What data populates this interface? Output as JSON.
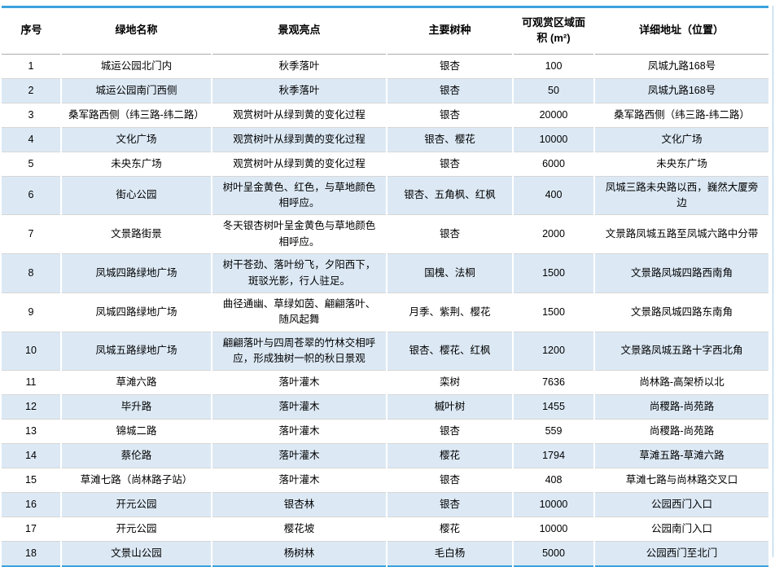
{
  "table": {
    "columns": [
      {
        "key": "index",
        "label": "序号"
      },
      {
        "key": "name",
        "label": "绿地名称"
      },
      {
        "key": "highlight",
        "label": "景观亮点"
      },
      {
        "key": "species",
        "label": "主要树种"
      },
      {
        "key": "area",
        "label": "可观赏区域面积 (m²)"
      },
      {
        "key": "address",
        "label": "详细地址（位置）"
      }
    ],
    "rows": [
      [
        "1",
        "城运公园北门内",
        "秋季落叶",
        "银杏",
        "100",
        "凤城九路168号"
      ],
      [
        "2",
        "城运公园南门西侧",
        "秋季落叶",
        "银杏",
        "50",
        "凤城九路168号"
      ],
      [
        "3",
        "桑军路西侧（纬三路-纬二路）",
        "观赏树叶从绿到黄的变化过程",
        "银杏",
        "20000",
        "桑军路西侧（纬三路-纬二路）"
      ],
      [
        "4",
        "文化广场",
        "观赏树叶从绿到黄的变化过程",
        "银杏、樱花",
        "10000",
        "文化广场"
      ],
      [
        "5",
        "未央东广场",
        "观赏树叶从绿到黄的变化过程",
        "银杏",
        "6000",
        "未央东广场"
      ],
      [
        "6",
        "街心公园",
        "树叶呈金黄色、红色，与草地颜色相呼应。",
        "银杏、五角枫、红枫",
        "400",
        "凤城三路未央路以西，巍然大厦旁边"
      ],
      [
        "7",
        "文景路街景",
        "冬天银杏树叶呈金黄色与草地颜色相呼应。",
        "银杏",
        "2000",
        "文景路凤城五路至凤城六路中分带"
      ],
      [
        "8",
        "凤城四路绿地广场",
        "树干苍劲、落叶纷飞，夕阳西下，斑驳光影，行人驻足。",
        "国槐、法桐",
        "1500",
        "文景路凤城四路西南角"
      ],
      [
        "9",
        "凤城四路绿地广场",
        "曲径通幽、草绿如茵、翩翩落叶、随风起舞",
        "月季、紫荆、樱花",
        "1500",
        "文景路凤城四路东南角"
      ],
      [
        "10",
        "凤城五路绿地广场",
        "翩翩落叶与四周苍翠的竹林交相呼应，形成独树一帜的秋日景观",
        "银杏、樱花、红枫",
        "1200",
        "文景路凤城五路十字西北角"
      ],
      [
        "11",
        "草滩六路",
        "落叶灌木",
        "栾树",
        "7636",
        "尚林路-高架桥以北"
      ],
      [
        "12",
        "毕升路",
        "落叶灌木",
        "槭叶树",
        "1455",
        "尚稷路-尚苑路"
      ],
      [
        "13",
        "锦城二路",
        "落叶灌木",
        "银杏",
        "559",
        "尚稷路-尚苑路"
      ],
      [
        "14",
        "蔡伦路",
        "落叶灌木",
        "樱花",
        "1794",
        "草滩五路-草滩六路"
      ],
      [
        "15",
        "草滩七路（尚林路子站）",
        "落叶灌木",
        "银杏",
        "408",
        "草滩七路与尚林路交叉口"
      ],
      [
        "16",
        "开元公园",
        "银杏林",
        "银杏",
        "10000",
        "公园西门入口"
      ],
      [
        "17",
        "开元公园",
        "樱花坡",
        "樱花",
        "10000",
        "公园南门入口"
      ],
      [
        "18",
        "文景山公园",
        "杨树林",
        "毛白杨",
        "5000",
        "公园西门至北门"
      ]
    ]
  },
  "colors": {
    "table_border_blue": "#3BA2DC",
    "alt_row_blue": "#DCE9F5",
    "row_divider_gray": "#D6D6D6",
    "header_divider_gray": "#ADADAD",
    "right_edge_line": "#A9CFE8",
    "text": "#000000"
  }
}
